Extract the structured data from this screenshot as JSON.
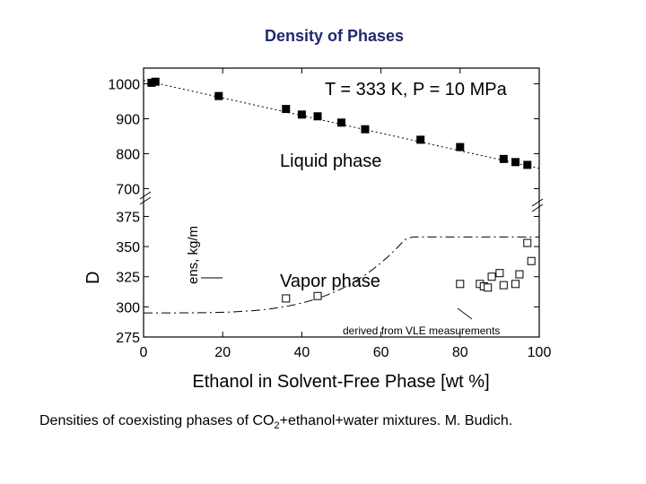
{
  "title": "Density of Phases",
  "caption": {
    "before": "Densities of coexisting phases of CO",
    "sub": "2",
    "after": "+ethanol+water mixtures. M. Budich."
  },
  "chart_data": {
    "type": "scatter",
    "annotation": "T = 333 K, P = 10 MPa",
    "xlabel": "Ethanol in Solvent-Free Phase [wt %]",
    "ylabel": "D",
    "ylabel_unit_glyphs": "ens, kg/m",
    "xlim": [
      0,
      100
    ],
    "x_ticks": [
      "0",
      "20",
      "40",
      "60",
      "80",
      "100"
    ],
    "ylim_upper": [
      655,
      1045
    ],
    "ylim_lower": [
      275,
      385
    ],
    "y_ticks_upper": [
      "700",
      "800",
      "900",
      "1000"
    ],
    "y_ticks_lower": [
      "275",
      "300",
      "325",
      "350",
      "375"
    ],
    "axis_break": true,
    "series": [
      {
        "name": "Liquid phase",
        "marker": "filled-square",
        "color": "#000000",
        "points": [
          [
            2,
            1003
          ],
          [
            3,
            1006
          ],
          [
            19,
            965
          ],
          [
            36,
            928
          ],
          [
            40,
            912
          ],
          [
            44,
            907
          ],
          [
            50,
            889
          ],
          [
            56,
            870
          ],
          [
            70,
            840
          ],
          [
            80,
            819
          ],
          [
            91,
            785
          ],
          [
            94,
            776
          ],
          [
            97,
            768
          ]
        ]
      },
      {
        "name": "Vapor phase",
        "marker": "open-square",
        "color": "#000000",
        "points": [
          [
            36,
            307
          ],
          [
            44,
            309
          ],
          [
            80,
            319
          ],
          [
            85,
            319
          ],
          [
            86,
            317
          ],
          [
            87,
            316
          ],
          [
            88,
            325
          ],
          [
            90,
            328
          ],
          [
            91,
            318
          ],
          [
            94,
            319
          ],
          [
            95,
            327
          ],
          [
            97,
            353
          ],
          [
            98,
            338
          ]
        ]
      }
    ],
    "curve_label": "derived from VLE measurements"
  }
}
